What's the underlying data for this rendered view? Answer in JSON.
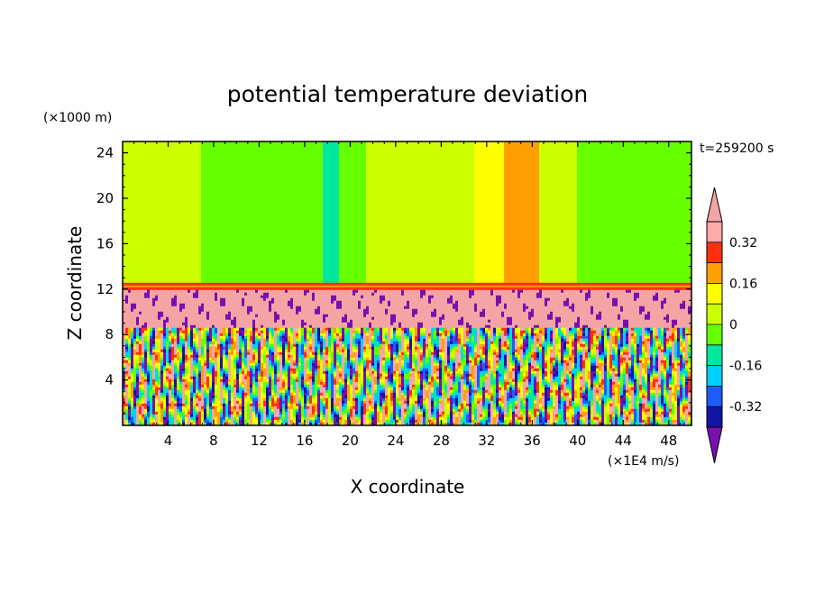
{
  "chart_data": {
    "type": "heatmap",
    "title": "potential temperature deviation",
    "xlabel": "X coordinate",
    "ylabel": "Z coordinate",
    "x_unit": "(×1E4 m/s)",
    "y_unit": "(×1000 m)",
    "time_label": "t=259200 s",
    "xlim": [
      0,
      50
    ],
    "ylim": [
      0,
      25
    ],
    "x_ticks": [
      4,
      8,
      12,
      16,
      20,
      24,
      28,
      32,
      36,
      40,
      44,
      48
    ],
    "y_ticks": [
      4,
      8,
      12,
      16,
      20,
      24
    ],
    "tropopause_z": 12.4,
    "colorbar": {
      "levels": [
        -0.4,
        -0.32,
        -0.24,
        -0.16,
        -0.08,
        0,
        0.08,
        0.16,
        0.24,
        0.32,
        0.4
      ],
      "labels": [
        "-0.32",
        "-0.16",
        "0",
        "0.16",
        "0.32"
      ],
      "colors": [
        "#7a0fb0",
        "#1414a8",
        "#1e5cff",
        "#00d0ff",
        "#00e8a0",
        "#66ff00",
        "#ccff00",
        "#ffff00",
        "#ffa000",
        "#ff3010",
        "#ffaaaa",
        "#f4a4a4"
      ]
    },
    "upper_columns": [
      {
        "x0": 0,
        "x1": 7,
        "value": 0.04
      },
      {
        "x0": 7,
        "x1": 17.5,
        "value": -0.04
      },
      {
        "x0": 17.5,
        "x1": 19,
        "value": -0.12
      },
      {
        "x0": 19,
        "x1": 21.5,
        "value": -0.04
      },
      {
        "x0": 21.5,
        "x1": 31,
        "value": 0.04
      },
      {
        "x0": 31,
        "x1": 33.5,
        "value": 0.1
      },
      {
        "x0": 33.5,
        "x1": 36.5,
        "value": 0.18
      },
      {
        "x0": 36.5,
        "x1": 40,
        "value": 0.04
      },
      {
        "x0": 40,
        "x1": 47,
        "value": -0.04
      },
      {
        "x0": 47,
        "x1": 50,
        "value": -0.04
      }
    ]
  }
}
